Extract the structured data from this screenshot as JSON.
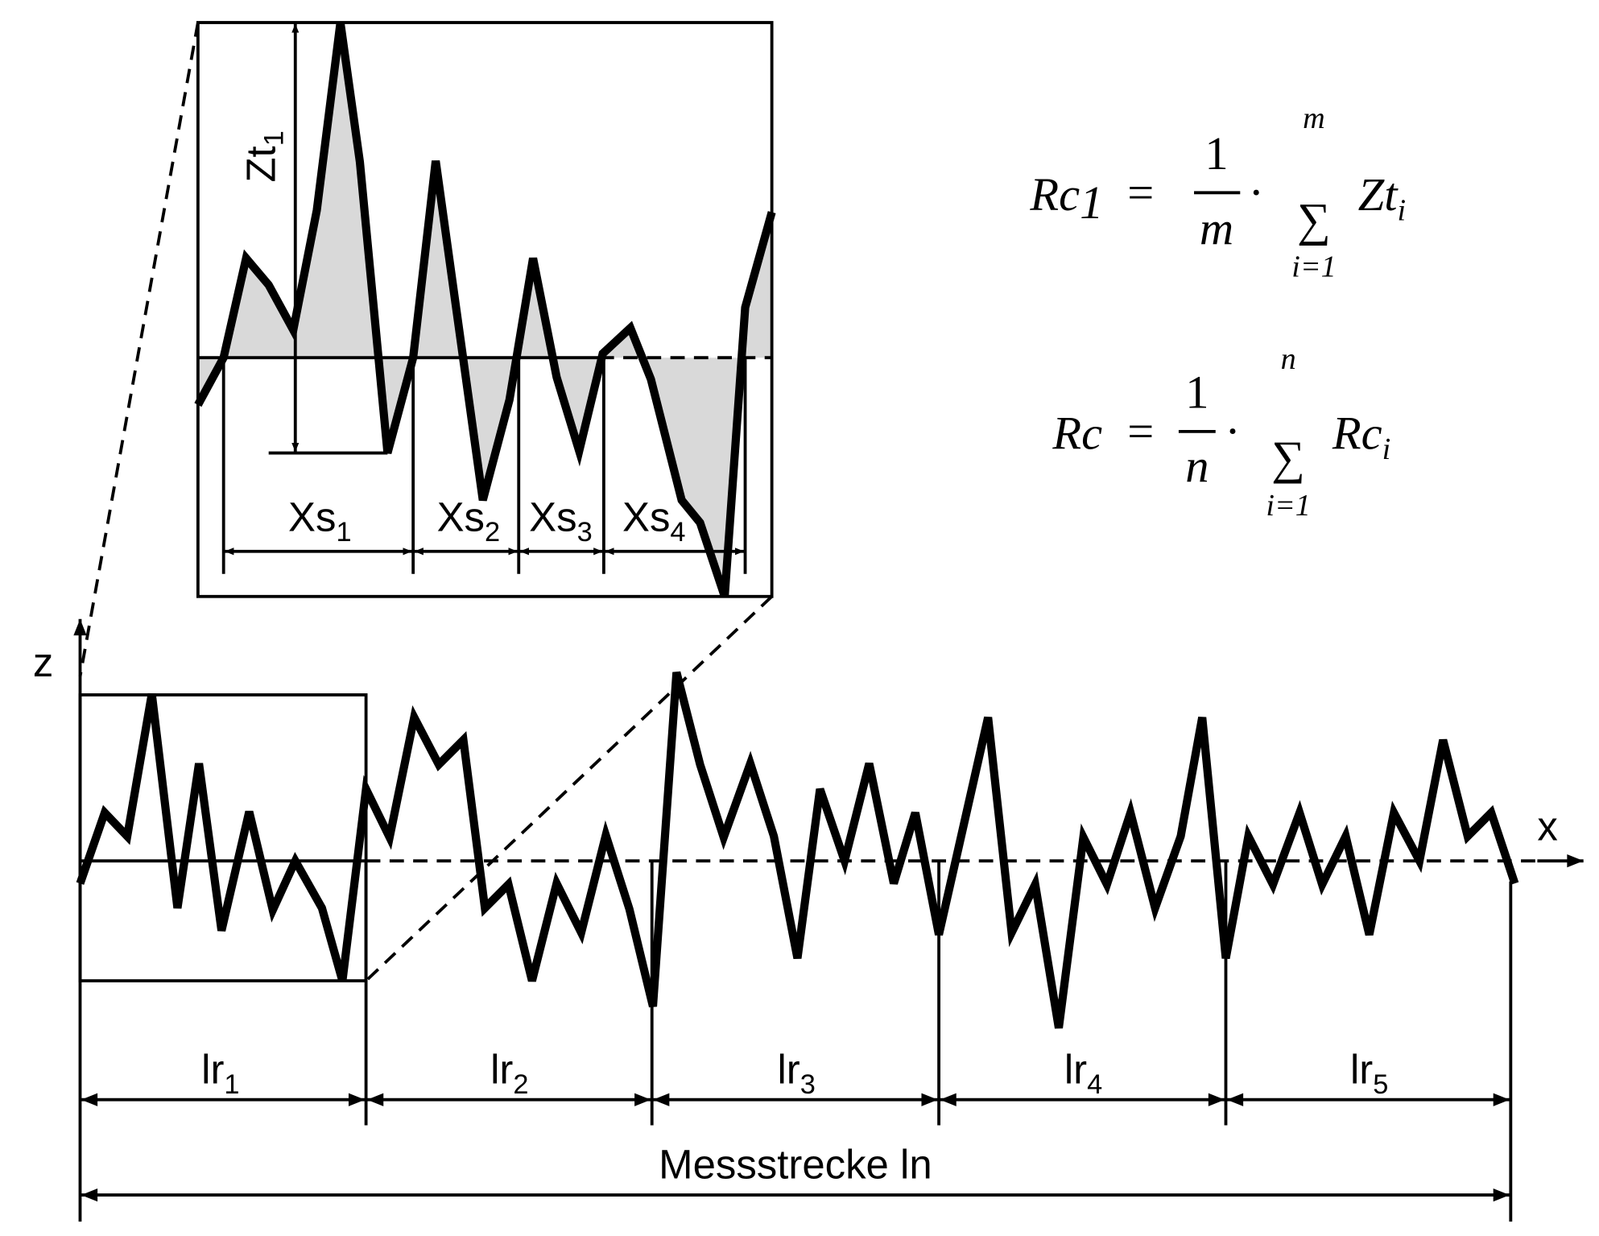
{
  "axes": {
    "z": "z",
    "x": "x"
  },
  "segments": [
    {
      "label": "lr",
      "sub": "1"
    },
    {
      "label": "lr",
      "sub": "2"
    },
    {
      "label": "lr",
      "sub": "3"
    },
    {
      "label": "lr",
      "sub": "4"
    },
    {
      "label": "lr",
      "sub": "5"
    }
  ],
  "total": "Messstrecke ln",
  "inset": {
    "height": {
      "label": "Zt",
      "sub": "1"
    },
    "spacings": [
      {
        "label": "Xs",
        "sub": "1"
      },
      {
        "label": "Xs",
        "sub": "2"
      },
      {
        "label": "Xs",
        "sub": "3"
      },
      {
        "label": "Xs",
        "sub": "4"
      }
    ]
  },
  "formulas": [
    {
      "lhs": "Rc",
      "lhs_sub": "1",
      "equals": "=",
      "numerator": "1",
      "denominator": "m",
      "dot": "·",
      "sum": "∑",
      "sum_upper": "m",
      "sum_lower": "i=1",
      "term": "Zt",
      "term_sub": "i"
    },
    {
      "lhs": "Rc",
      "equals": "=",
      "numerator": "1",
      "denominator": "n",
      "dot": "·",
      "sum": "∑",
      "sum_upper": "n",
      "sum_lower": "i=1",
      "term": "Rc",
      "term_sub": "i"
    }
  ]
}
